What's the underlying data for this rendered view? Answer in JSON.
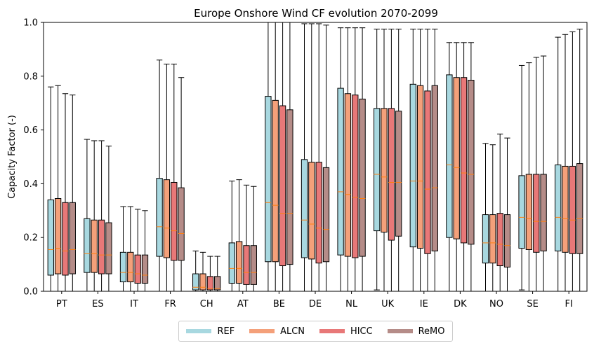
{
  "chart_data": {
    "type": "box",
    "title": "Europe Onshore Wind CF evolution 2070-2099",
    "xlabel": "",
    "ylabel": "Capacity Factor (-)",
    "ylim": [
      0,
      1.0
    ],
    "yticks": [
      "0.0",
      "0.2",
      "0.4",
      "0.6",
      "0.8",
      "1.0"
    ],
    "grid": false,
    "legend_position": "bottom-center",
    "categories": [
      "PT",
      "ES",
      "IT",
      "FR",
      "CH",
      "AT",
      "BE",
      "DE",
      "NL",
      "UK",
      "IE",
      "DK",
      "NO",
      "SE",
      "FI"
    ],
    "median_color": "#ff7f0e",
    "series": [
      {
        "name": "REF",
        "color": "#a8d8e0",
        "boxes": [
          {
            "whislo": 0.0,
            "q1": 0.06,
            "med": 0.155,
            "q3": 0.34,
            "whishi": 0.76
          },
          {
            "whislo": 0.0,
            "q1": 0.07,
            "med": 0.14,
            "q3": 0.27,
            "whishi": 0.565
          },
          {
            "whislo": 0.0,
            "q1": 0.035,
            "med": 0.07,
            "q3": 0.145,
            "whishi": 0.315
          },
          {
            "whislo": 0.0,
            "q1": 0.13,
            "med": 0.24,
            "q3": 0.42,
            "whishi": 0.86
          },
          {
            "whislo": 0.0,
            "q1": 0.005,
            "med": 0.015,
            "q3": 0.065,
            "whishi": 0.15
          },
          {
            "whislo": 0.0,
            "q1": 0.03,
            "med": 0.085,
            "q3": 0.18,
            "whishi": 0.41
          },
          {
            "whislo": 0.0,
            "q1": 0.11,
            "med": 0.33,
            "q3": 0.725,
            "whishi": 1.0
          },
          {
            "whislo": 0.0,
            "q1": 0.125,
            "med": 0.265,
            "q3": 0.49,
            "whishi": 0.995
          },
          {
            "whislo": 0.0,
            "q1": 0.135,
            "med": 0.37,
            "q3": 0.755,
            "whishi": 0.98
          },
          {
            "whislo": 0.005,
            "q1": 0.225,
            "med": 0.435,
            "q3": 0.68,
            "whishi": 0.975
          },
          {
            "whislo": 0.0,
            "q1": 0.165,
            "med": 0.41,
            "q3": 0.77,
            "whishi": 0.975
          },
          {
            "whislo": 0.0,
            "q1": 0.2,
            "med": 0.47,
            "q3": 0.805,
            "whishi": 0.925
          },
          {
            "whislo": 0.0,
            "q1": 0.105,
            "med": 0.18,
            "q3": 0.285,
            "whishi": 0.55
          },
          {
            "whislo": 0.005,
            "q1": 0.16,
            "med": 0.275,
            "q3": 0.43,
            "whishi": 0.84
          },
          {
            "whislo": 0.0,
            "q1": 0.15,
            "med": 0.275,
            "q3": 0.47,
            "whishi": 0.945
          }
        ]
      },
      {
        "name": "ALCN",
        "color": "#f4a07a",
        "boxes": [
          {
            "whislo": 0.0,
            "q1": 0.065,
            "med": 0.16,
            "q3": 0.345,
            "whishi": 0.765
          },
          {
            "whislo": 0.0,
            "q1": 0.07,
            "med": 0.14,
            "q3": 0.265,
            "whishi": 0.56
          },
          {
            "whislo": 0.0,
            "q1": 0.035,
            "med": 0.07,
            "q3": 0.145,
            "whishi": 0.315
          },
          {
            "whislo": 0.0,
            "q1": 0.125,
            "med": 0.235,
            "q3": 0.415,
            "whishi": 0.845
          },
          {
            "whislo": 0.0,
            "q1": 0.005,
            "med": 0.015,
            "q3": 0.065,
            "whishi": 0.145
          },
          {
            "whislo": 0.0,
            "q1": 0.03,
            "med": 0.085,
            "q3": 0.185,
            "whishi": 0.415
          },
          {
            "whislo": 0.0,
            "q1": 0.11,
            "med": 0.32,
            "q3": 0.71,
            "whishi": 1.0
          },
          {
            "whislo": 0.0,
            "q1": 0.12,
            "med": 0.25,
            "q3": 0.48,
            "whishi": 0.995
          },
          {
            "whislo": 0.0,
            "q1": 0.13,
            "med": 0.36,
            "q3": 0.735,
            "whishi": 0.98
          },
          {
            "whislo": 0.0,
            "q1": 0.22,
            "med": 0.425,
            "q3": 0.68,
            "whishi": 0.975
          },
          {
            "whislo": 0.0,
            "q1": 0.16,
            "med": 0.41,
            "q3": 0.765,
            "whishi": 0.975
          },
          {
            "whislo": 0.0,
            "q1": 0.195,
            "med": 0.46,
            "q3": 0.795,
            "whishi": 0.925
          },
          {
            "whislo": 0.0,
            "q1": 0.105,
            "med": 0.18,
            "q3": 0.285,
            "whishi": 0.545
          },
          {
            "whislo": 0.0,
            "q1": 0.155,
            "med": 0.27,
            "q3": 0.435,
            "whishi": 0.85
          },
          {
            "whislo": 0.0,
            "q1": 0.145,
            "med": 0.27,
            "q3": 0.465,
            "whishi": 0.955
          }
        ]
      },
      {
        "name": "HICC",
        "color": "#e87878",
        "boxes": [
          {
            "whislo": 0.0,
            "q1": 0.06,
            "med": 0.15,
            "q3": 0.33,
            "whishi": 0.735
          },
          {
            "whislo": 0.0,
            "q1": 0.065,
            "med": 0.135,
            "q3": 0.265,
            "whishi": 0.56
          },
          {
            "whislo": 0.0,
            "q1": 0.03,
            "med": 0.065,
            "q3": 0.135,
            "whishi": 0.305
          },
          {
            "whislo": 0.0,
            "q1": 0.115,
            "med": 0.225,
            "q3": 0.405,
            "whishi": 0.845
          },
          {
            "whislo": 0.0,
            "q1": 0.005,
            "med": 0.01,
            "q3": 0.055,
            "whishi": 0.13
          },
          {
            "whislo": 0.0,
            "q1": 0.025,
            "med": 0.07,
            "q3": 0.17,
            "whishi": 0.395
          },
          {
            "whislo": 0.0,
            "q1": 0.095,
            "med": 0.29,
            "q3": 0.69,
            "whishi": 1.0
          },
          {
            "whislo": 0.0,
            "q1": 0.105,
            "med": 0.235,
            "q3": 0.48,
            "whishi": 0.995
          },
          {
            "whislo": 0.0,
            "q1": 0.125,
            "med": 0.35,
            "q3": 0.73,
            "whishi": 0.98
          },
          {
            "whislo": 0.0,
            "q1": 0.19,
            "med": 0.405,
            "q3": 0.68,
            "whishi": 0.975
          },
          {
            "whislo": 0.0,
            "q1": 0.14,
            "med": 0.38,
            "q3": 0.745,
            "whishi": 0.975
          },
          {
            "whislo": 0.0,
            "q1": 0.18,
            "med": 0.44,
            "q3": 0.795,
            "whishi": 0.925
          },
          {
            "whislo": 0.0,
            "q1": 0.095,
            "med": 0.175,
            "q3": 0.29,
            "whishi": 0.585
          },
          {
            "whislo": 0.0,
            "q1": 0.145,
            "med": 0.26,
            "q3": 0.435,
            "whishi": 0.87
          },
          {
            "whislo": 0.0,
            "q1": 0.14,
            "med": 0.265,
            "q3": 0.465,
            "whishi": 0.965
          }
        ]
      },
      {
        "name": "ReMO",
        "color": "#b58c88",
        "boxes": [
          {
            "whislo": 0.0,
            "q1": 0.065,
            "med": 0.155,
            "q3": 0.33,
            "whishi": 0.73
          },
          {
            "whislo": 0.0,
            "q1": 0.065,
            "med": 0.135,
            "q3": 0.255,
            "whishi": 0.54
          },
          {
            "whislo": 0.0,
            "q1": 0.03,
            "med": 0.06,
            "q3": 0.135,
            "whishi": 0.3
          },
          {
            "whislo": 0.0,
            "q1": 0.115,
            "med": 0.215,
            "q3": 0.385,
            "whishi": 0.795
          },
          {
            "whislo": 0.0,
            "q1": 0.005,
            "med": 0.01,
            "q3": 0.055,
            "whishi": 0.13
          },
          {
            "whislo": 0.0,
            "q1": 0.025,
            "med": 0.07,
            "q3": 0.17,
            "whishi": 0.39
          },
          {
            "whislo": 0.0,
            "q1": 0.1,
            "med": 0.29,
            "q3": 0.675,
            "whishi": 1.0
          },
          {
            "whislo": 0.0,
            "q1": 0.11,
            "med": 0.23,
            "q3": 0.46,
            "whishi": 0.99
          },
          {
            "whislo": 0.0,
            "q1": 0.13,
            "med": 0.345,
            "q3": 0.715,
            "whishi": 0.98
          },
          {
            "whislo": 0.0,
            "q1": 0.205,
            "med": 0.405,
            "q3": 0.67,
            "whishi": 0.975
          },
          {
            "whislo": 0.0,
            "q1": 0.15,
            "med": 0.385,
            "q3": 0.765,
            "whishi": 0.975
          },
          {
            "whislo": 0.0,
            "q1": 0.175,
            "med": 0.435,
            "q3": 0.785,
            "whishi": 0.925
          },
          {
            "whislo": 0.0,
            "q1": 0.09,
            "med": 0.17,
            "q3": 0.285,
            "whishi": 0.57
          },
          {
            "whislo": 0.0,
            "q1": 0.15,
            "med": 0.26,
            "q3": 0.435,
            "whishi": 0.875
          },
          {
            "whislo": 0.0,
            "q1": 0.14,
            "med": 0.27,
            "q3": 0.475,
            "whishi": 0.975
          }
        ]
      }
    ]
  }
}
